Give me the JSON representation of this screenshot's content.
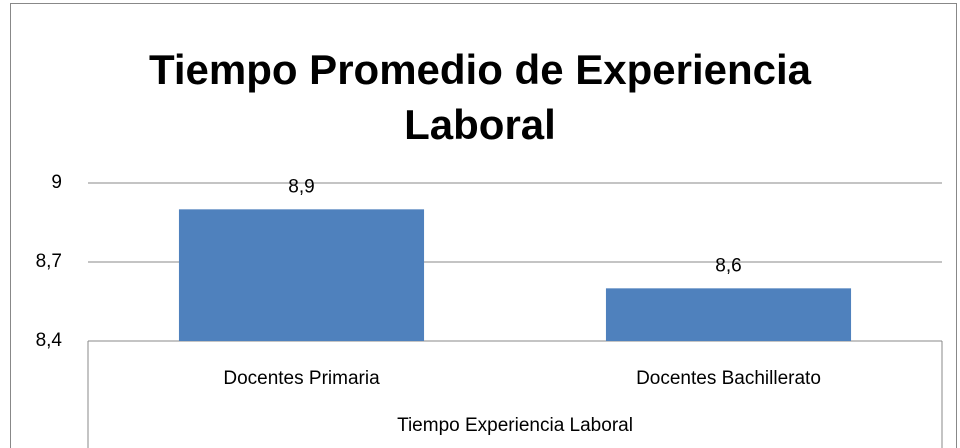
{
  "chart_data": {
    "type": "bar",
    "title": "Tiempo Promedio de Experiencia Laboral",
    "categories": [
      "Docentes Primaria",
      "Docentes Bachillerato"
    ],
    "values": [
      8.9,
      8.6
    ],
    "value_labels": [
      "8,9",
      "8,6"
    ],
    "color": "#4f81bd",
    "x_label": "Tiempo Experiencia Laboral",
    "ylim": [
      8.4,
      9
    ],
    "yticks": [
      {
        "value": 8.4,
        "label": "8,4"
      },
      {
        "value": 8.7,
        "label": "8,7"
      },
      9
    ],
    "grid": true
  }
}
